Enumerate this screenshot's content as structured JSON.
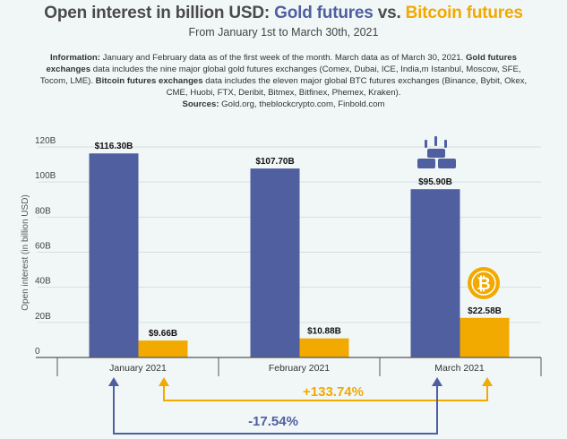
{
  "header": {
    "title_prefix": "Open interest in billion USD: ",
    "title_gold": "Gold futures",
    "title_vs": " vs. ",
    "title_btc": "Bitcoin futures",
    "subtitle": "From January 1st to March 30th, 2021"
  },
  "info": {
    "label_information": "Information:",
    "text_information": " January and February data as of the first week of the month. March data as of March 30, 2021. ",
    "label_gold": "Gold futures exchanges",
    "text_gold": " data includes the nine major global gold futures exchanges (Comex, Dubai, ICE, India,m Istanbul, Moscow, SFE, Tocom, LME). ",
    "label_btc": "Bitcoin futures exchanges",
    "text_btc": " data includes the eleven major global BTC futures exchanges (Binance, Bybit, Okex, CME, Huobi, FTX, Deribit, Bitmex, Bitfinex, Phemex, Kraken).",
    "label_sources": "Sources:",
    "text_sources": " Gold.org, theblockcrypto.com, Finbold.com"
  },
  "colors": {
    "gold": "#4f5fa0",
    "btc": "#f2a900",
    "grid": "#d6dede",
    "axis": "#555555"
  },
  "chart_data": {
    "type": "bar",
    "ylabel": "Open interest (in billion USD)",
    "ylim": [
      0,
      120
    ],
    "yticks": [
      0,
      20,
      40,
      60,
      80,
      100,
      120
    ],
    "ytick_labels": [
      "0",
      "20B",
      "40B",
      "60B",
      "80B",
      "100B",
      "120B"
    ],
    "categories": [
      "January 2021",
      "February 2021",
      "March 2021"
    ],
    "series": [
      {
        "values": [
          116.3,
          107.7,
          95.9
        ],
        "labels": [
          "$116.30B",
          "$107.70B",
          "$95.90B"
        ]
      },
      {
        "values": [
          9.66,
          10.88,
          22.58
        ],
        "labels": [
          "$9.66B",
          "$10.88B",
          "$22.58B"
        ]
      }
    ],
    "annotations": {
      "btc_change": "+133.74%",
      "gold_change": "-17.54%"
    },
    "grid": true
  }
}
